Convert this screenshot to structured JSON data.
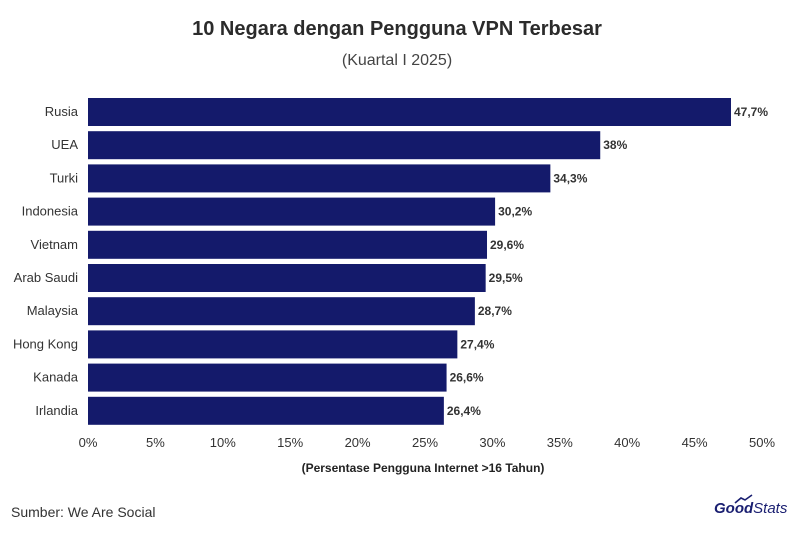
{
  "chart_data": {
    "type": "bar",
    "orientation": "horizontal",
    "title": "10 Negara dengan Pengguna VPN Terbesar",
    "subtitle": "(Kuartal I 2025)",
    "xlabel": "(Persentase Pengguna Internet >16 Tahun)",
    "ylabel": "",
    "xlim": [
      0,
      50
    ],
    "xticks": [
      "0%",
      "5%",
      "10%",
      "15%",
      "20%",
      "25%",
      "30%",
      "35%",
      "40%",
      "45%",
      "50%"
    ],
    "grid": false,
    "bar_color": "#141a6b",
    "categories": [
      "Rusia",
      "UEA",
      "Turki",
      "Indonesia",
      "Vietnam",
      "Arab Saudi",
      "Malaysia",
      "Hong Kong",
      "Kanada",
      "Irlandia"
    ],
    "values": [
      47.7,
      38,
      34.3,
      30.2,
      29.6,
      29.5,
      28.7,
      27.4,
      26.6,
      26.4
    ],
    "value_labels": [
      "47,7%",
      "38%",
      "34,3%",
      "30,2%",
      "29,6%",
      "29,5%",
      "28,7%",
      "27,4%",
      "26,6%",
      "26,4%"
    ]
  },
  "footer": {
    "source": "Sumber: We Are Social",
    "logo_good": "Good",
    "logo_stats": "Stats"
  }
}
